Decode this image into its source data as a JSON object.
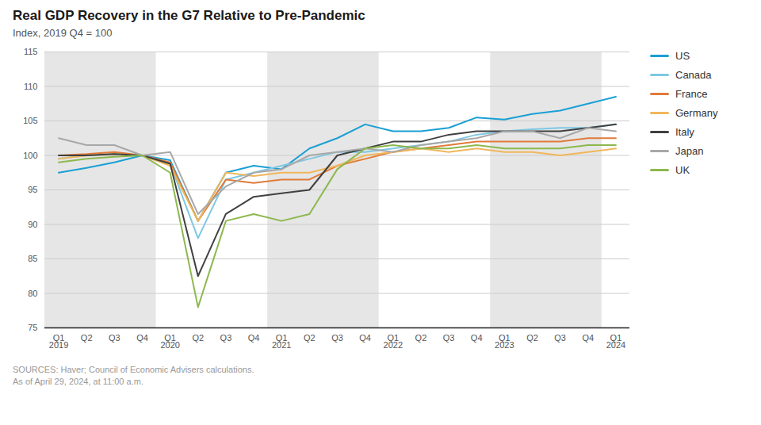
{
  "chart_data": {
    "type": "line",
    "title": "Real GDP Recovery in the G7 Relative to Pre-Pandemic",
    "subtitle": "Index, 2019 Q4 = 100",
    "source": "SOURCES: Haver; Council of Economic Advisers calculations.\nAs of April 29, 2024, at 11:00 a.m.",
    "categories": [
      "Q1",
      "Q2",
      "Q3",
      "Q4",
      "Q1",
      "Q2",
      "Q3",
      "Q4",
      "Q1",
      "Q2",
      "Q3",
      "Q4",
      "Q1",
      "Q2",
      "Q3",
      "Q4",
      "Q1",
      "Q2",
      "Q3",
      "Q4",
      "Q1"
    ],
    "x_group_labels": [
      {
        "value": 0,
        "label": "2019"
      },
      {
        "value": 4,
        "label": "2020"
      },
      {
        "value": 8,
        "label": "2021"
      },
      {
        "value": 12,
        "label": "2022"
      },
      {
        "value": 16,
        "label": "2023"
      },
      {
        "value": 20,
        "label": "2024"
      }
    ],
    "shaded_regions": [
      [
        0,
        4
      ],
      [
        8,
        12
      ],
      [
        16,
        20
      ]
    ],
    "series": [
      {
        "name": "US",
        "color": "#1a9fd4",
        "values": [
          97.5,
          98.2,
          99.0,
          100.0,
          99.3,
          90.5,
          97.5,
          98.5,
          98.0,
          101.0,
          102.5,
          104.5,
          103.5,
          103.5,
          104.0,
          105.5,
          105.2,
          106.0,
          106.5,
          107.5,
          108.5
        ]
      },
      {
        "name": "Canada",
        "color": "#7ec8e3",
        "values": [
          99.5,
          100.0,
          100.2,
          100.0,
          98.8,
          88.0,
          96.5,
          97.5,
          98.5,
          99.5,
          100.5,
          100.5,
          101.0,
          101.5,
          102.0,
          103.0,
          103.5,
          103.8,
          104.0,
          104.0,
          104.5
        ]
      },
      {
        "name": "France",
        "color": "#e07b39",
        "values": [
          100.0,
          100.2,
          100.5,
          100.0,
          99.0,
          90.5,
          96.5,
          96.0,
          96.5,
          96.5,
          98.5,
          99.5,
          100.5,
          101.0,
          101.5,
          102.0,
          102.0,
          102.0,
          102.0,
          102.5,
          102.5
        ]
      },
      {
        "name": "Germany",
        "color": "#f0b75b",
        "values": [
          99.5,
          100.0,
          100.2,
          100.0,
          98.5,
          90.5,
          97.5,
          97.0,
          97.5,
          97.5,
          98.5,
          100.0,
          100.5,
          101.0,
          100.5,
          101.0,
          100.5,
          100.5,
          100.0,
          100.5,
          101.0
        ]
      },
      {
        "name": "Italy",
        "color": "#404040",
        "values": [
          100.0,
          100.0,
          100.2,
          100.0,
          98.8,
          82.5,
          91.5,
          94.0,
          94.5,
          95.0,
          100.0,
          101.0,
          102.0,
          102.0,
          103.0,
          103.5,
          103.5,
          103.5,
          103.5,
          104.0,
          104.5
        ]
      },
      {
        "name": "Japan",
        "color": "#a8a8a8",
        "values": [
          102.5,
          101.5,
          101.5,
          100.0,
          100.5,
          91.5,
          95.5,
          97.5,
          98.0,
          100.0,
          100.5,
          101.0,
          100.5,
          101.5,
          102.0,
          102.5,
          103.5,
          103.5,
          102.5,
          104.0,
          103.5
        ]
      },
      {
        "name": "UK",
        "color": "#8db84e",
        "values": [
          99.0,
          99.5,
          99.8,
          100.0,
          97.5,
          78.0,
          90.5,
          91.5,
          90.5,
          91.5,
          98.0,
          101.0,
          101.5,
          101.0,
          101.0,
          101.5,
          101.0,
          101.0,
          101.0,
          101.5,
          101.5
        ]
      }
    ],
    "ylim": [
      75,
      115
    ],
    "yticks": [
      75,
      80,
      85,
      90,
      95,
      100,
      105,
      110,
      115
    ],
    "grid": true,
    "legend": "right"
  }
}
